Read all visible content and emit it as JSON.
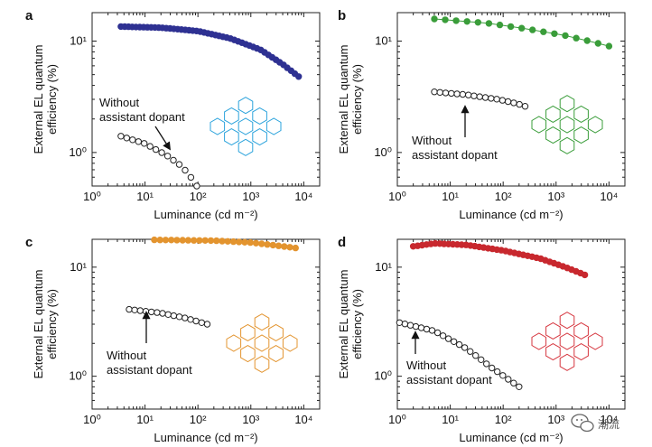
{
  "figure": {
    "watermark_text": "潮流",
    "watermark_icon": "wechat-bubble-icon"
  },
  "chart_data": [
    {
      "type": "scatter",
      "panel": "a",
      "xlabel": "Luminance (cd m⁻²)",
      "ylabel": [
        "External EL quantum",
        "efficiency (%)"
      ],
      "xscale": "log",
      "yscale": "log",
      "xlim": [
        1,
        20000
      ],
      "ylim": [
        0.5,
        18
      ],
      "xticks": [
        "10⁰",
        "10¹",
        "10²",
        "10³",
        "10⁴"
      ],
      "xtick_values": [
        1,
        10,
        100,
        1000,
        10000
      ],
      "yticks": [
        "10⁰",
        "10¹"
      ],
      "ytick_values": [
        1,
        10
      ],
      "grid": false,
      "annotation": [
        "Without",
        "assistant dopant"
      ],
      "molecule_icon": "tetra-tert-butyl-rubrene-structure-icon",
      "molecule_color": "#2ba3dc",
      "series": [
        {
          "color": "#2e3192",
          "filled": true,
          "x_from": 3.5,
          "x_to": 8000,
          "count": 48,
          "curve_x": [
            3.5,
            20,
            100,
            400,
            1500,
            4000,
            8000
          ],
          "curve_y": [
            13.5,
            13.2,
            12.3,
            10.6,
            8.4,
            6.2,
            4.8
          ]
        },
        {
          "color": "#222222",
          "filled": false,
          "x_from": 3.5,
          "x_to": 95,
          "count": 14,
          "curve_x": [
            3.5,
            10,
            25,
            50,
            80,
            95
          ],
          "curve_y": [
            1.4,
            1.2,
            0.95,
            0.75,
            0.57,
            0.5
          ]
        }
      ]
    },
    {
      "type": "scatter",
      "panel": "b",
      "xlabel": "Luminance (cd m⁻²)",
      "ylabel": [
        "External EL quantum",
        "efficiency (%)"
      ],
      "xscale": "log",
      "yscale": "log",
      "xlim": [
        1,
        20000
      ],
      "ylim": [
        0.5,
        18
      ],
      "xticks": [
        "10⁰",
        "10¹",
        "10²",
        "10³",
        "10⁴"
      ],
      "xtick_values": [
        1,
        10,
        100,
        1000,
        10000
      ],
      "yticks": [
        "10⁰",
        "10¹"
      ],
      "ytick_values": [
        1,
        10
      ],
      "grid": false,
      "annotation": [
        "Without",
        "assistant dopant"
      ],
      "molecule_icon": "diamine-chrysene-structure-icon",
      "molecule_color": "#3a9d3a",
      "series": [
        {
          "color": "#3a9d3a",
          "filled": true,
          "x_from": 5,
          "x_to": 10000,
          "count": 17,
          "curve_x": [
            5,
            50,
            300,
            1500,
            5000,
            10000
          ],
          "curve_y": [
            15.8,
            14.5,
            12.8,
            11.2,
            9.8,
            9.0
          ]
        },
        {
          "color": "#222222",
          "filled": false,
          "x_from": 5,
          "x_to": 260,
          "count": 17,
          "curve_x": [
            5,
            20,
            80,
            180,
            260
          ],
          "curve_y": [
            3.5,
            3.3,
            3.0,
            2.75,
            2.6
          ]
        }
      ]
    },
    {
      "type": "scatter",
      "panel": "c",
      "xlabel": "Luminance (cd m⁻²)",
      "ylabel": [
        "External EL quantum",
        "efficiency (%)"
      ],
      "xscale": "log",
      "yscale": "log",
      "xlim": [
        1,
        20000
      ],
      "ylim": [
        0.5,
        18
      ],
      "xticks": [
        "10⁰",
        "10¹",
        "10²",
        "10³",
        "10⁴"
      ],
      "xtick_values": [
        1,
        10,
        100,
        1000,
        10000
      ],
      "yticks": [
        "10⁰",
        "10¹"
      ],
      "ytick_values": [
        1,
        10
      ],
      "grid": false,
      "annotation": [
        "Without",
        "assistant dopant"
      ],
      "molecule_icon": "tetraaryl-tetracene-structure-icon",
      "molecule_color": "#e3942f",
      "series": [
        {
          "color": "#e3942f",
          "filled": true,
          "x_from": 15,
          "x_to": 7000,
          "count": 26,
          "curve_x": [
            15,
            200,
            1000,
            3000,
            7000
          ],
          "curve_y": [
            17.8,
            17.5,
            16.8,
            15.8,
            15.0
          ]
        },
        {
          "color": "#222222",
          "filled": false,
          "x_from": 5,
          "x_to": 150,
          "count": 15,
          "curve_x": [
            5,
            20,
            60,
            150
          ],
          "curve_y": [
            4.1,
            3.8,
            3.4,
            3.0
          ]
        }
      ]
    },
    {
      "type": "scatter",
      "panel": "d",
      "xlabel": "Luminance (cd m⁻²)",
      "ylabel": [
        "External EL quantum",
        "efficiency (%)"
      ],
      "xscale": "log",
      "yscale": "log",
      "xlim": [
        1,
        20000
      ],
      "ylim": [
        0.5,
        18
      ],
      "xticks": [
        "10⁰",
        "10¹",
        "10²",
        "10³",
        "10⁴"
      ],
      "xtick_values": [
        1,
        10,
        100,
        1000,
        10000
      ],
      "yticks": [
        "10⁰",
        "10¹"
      ],
      "ytick_values": [
        1,
        10
      ],
      "grid": false,
      "annotation": [
        "Without",
        "assistant dopant"
      ],
      "molecule_icon": "tetraphenyl-dibenzoperiflanthene-structure-icon",
      "molecule_color": "#d6363f",
      "series": [
        {
          "color": "#c8282e",
          "filled": true,
          "x_from": 2,
          "x_to": 3500,
          "count": 40,
          "curve_x": [
            2,
            5,
            20,
            100,
            500,
            1500,
            3500
          ],
          "curve_y": [
            15.5,
            16.5,
            16.0,
            14.2,
            12.0,
            10.0,
            8.5
          ]
        },
        {
          "color": "#222222",
          "filled": false,
          "x_from": 1.1,
          "x_to": 200,
          "count": 23,
          "curve_x": [
            1.1,
            5,
            20,
            60,
            200
          ],
          "curve_y": [
            3.1,
            2.6,
            1.8,
            1.2,
            0.8
          ]
        }
      ]
    }
  ]
}
